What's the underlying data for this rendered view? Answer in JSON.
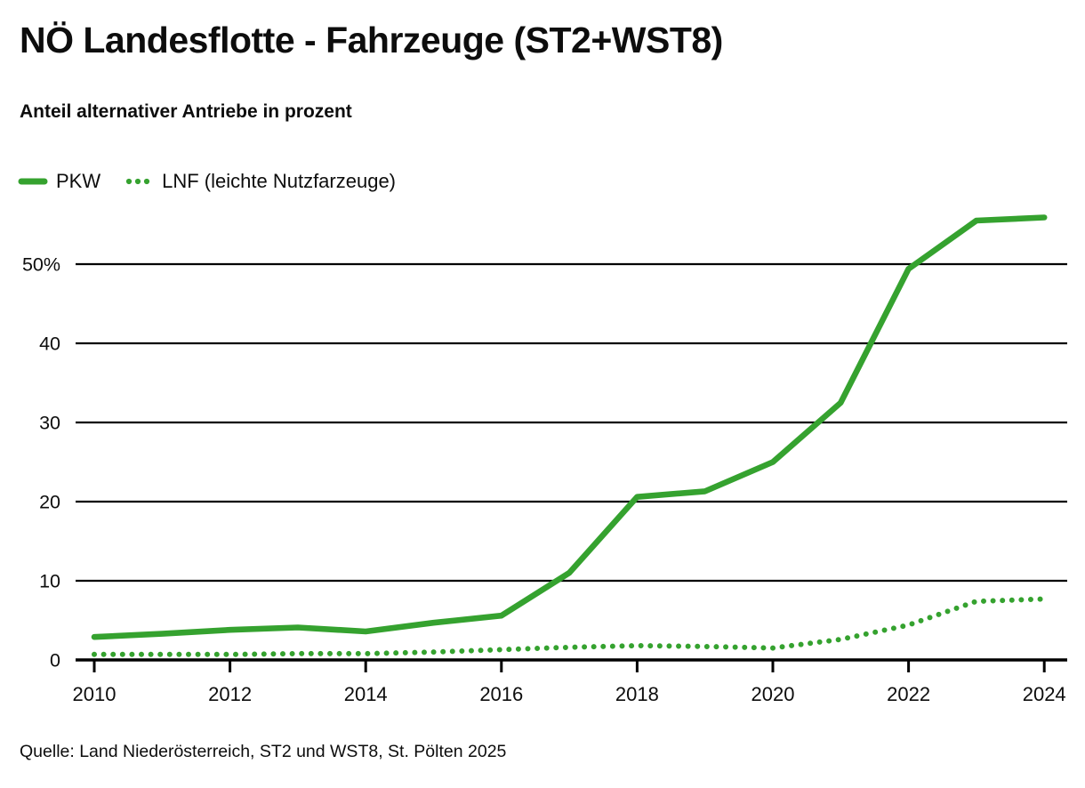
{
  "header": {
    "title": "NÖ Landesflotte - Fahrzeuge (ST2+WST8)",
    "subtitle": "Anteil alternativer Antriebe in prozent"
  },
  "legend": {
    "items": [
      {
        "label": "PKW",
        "swatch": "solid-dash"
      },
      {
        "label": "LNF (leichte Nutzfarzeuge)",
        "swatch": "three-dots"
      }
    ]
  },
  "footer": {
    "source_text": "Quelle: Land Niederösterreich, ST2 und WST8, St. Pölten 2025"
  },
  "colors": {
    "series_green": "#35a22f",
    "grid_black": "#000000",
    "text_black": "#0d0d0d",
    "background": "#ffffff"
  },
  "chart_data": {
    "type": "line",
    "title": "NÖ Landesflotte - Fahrzeuge (ST2+WST8)",
    "subtitle": "Anteil alternativer Antriebe in prozent",
    "xlabel": "",
    "ylabel": "",
    "x": [
      2010,
      2011,
      2012,
      2013,
      2014,
      2015,
      2016,
      2017,
      2018,
      2019,
      2020,
      2021,
      2022,
      2023,
      2024
    ],
    "series": [
      {
        "name": "PKW",
        "line_style": "solid",
        "values": [
          2.9,
          3.3,
          3.8,
          4.1,
          3.6,
          4.7,
          5.6,
          11.0,
          20.6,
          21.3,
          25.0,
          32.5,
          49.4,
          55.5,
          55.9
        ]
      },
      {
        "name": "LNF (leichte Nutzfarzeuge)",
        "line_style": "dotted",
        "values": [
          0.7,
          0.7,
          0.7,
          0.8,
          0.8,
          1.0,
          1.3,
          1.6,
          1.8,
          1.7,
          1.5,
          2.6,
          4.4,
          7.4,
          7.7
        ]
      }
    ],
    "ylim": [
      0,
      57
    ],
    "yticks": [
      0,
      10,
      20,
      30,
      40,
      50
    ],
    "ytick_labels": [
      "0",
      "10",
      "20",
      "30",
      "40",
      "50%"
    ],
    "xticks": [
      2010,
      2012,
      2014,
      2016,
      2018,
      2020,
      2022,
      2024
    ],
    "grid": "horizontal-only",
    "legend_position": "top-left"
  }
}
